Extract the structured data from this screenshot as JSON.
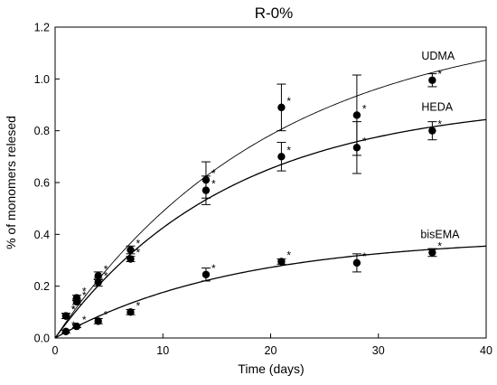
{
  "chart_data": {
    "type": "scatter",
    "title": "R-0%",
    "xlabel": "Time (days)",
    "ylabel": "% of monomers relesed",
    "xlim": [
      0,
      40
    ],
    "ylim": [
      0,
      1.2
    ],
    "xticks": [
      0,
      10,
      20,
      30,
      40
    ],
    "yticks": [
      0.0,
      0.2,
      0.4,
      0.6,
      0.8,
      1.0,
      1.2
    ],
    "grid": false,
    "series": [
      {
        "name": "UDMA",
        "x": [
          1,
          2,
          4,
          7,
          14,
          21,
          28,
          35
        ],
        "y": [
          0.085,
          0.155,
          0.24,
          0.34,
          0.61,
          0.89,
          0.86,
          0.995
        ],
        "err": [
          0.01,
          0.01,
          0.015,
          0.015,
          0.07,
          0.09,
          0.155,
          0.025
        ],
        "fit_max": 1.24,
        "fit_rate": 0.05,
        "star": true
      },
      {
        "name": "HEDA",
        "x": [
          1,
          2,
          4,
          7,
          14,
          21,
          28,
          35
        ],
        "y": [
          0.085,
          0.14,
          0.215,
          0.305,
          0.57,
          0.7,
          0.735,
          0.8
        ],
        "err": [
          0.01,
          0.01,
          0.015,
          0.01,
          0.055,
          0.055,
          0.1,
          0.035
        ],
        "fit_max": 0.92,
        "fit_rate": 0.062,
        "star": true
      },
      {
        "name": "bisEMA",
        "x": [
          1,
          2,
          4,
          7,
          14,
          21,
          28,
          35
        ],
        "y": [
          0.025,
          0.045,
          0.065,
          0.1,
          0.245,
          0.295,
          0.29,
          0.33
        ],
        "err": [
          0.005,
          0.005,
          0.01,
          0.01,
          0.025,
          0.01,
          0.035,
          0.015
        ],
        "fit_max": 0.39,
        "fit_rate": 0.06,
        "star": true
      }
    ],
    "star_symbol": "*"
  }
}
